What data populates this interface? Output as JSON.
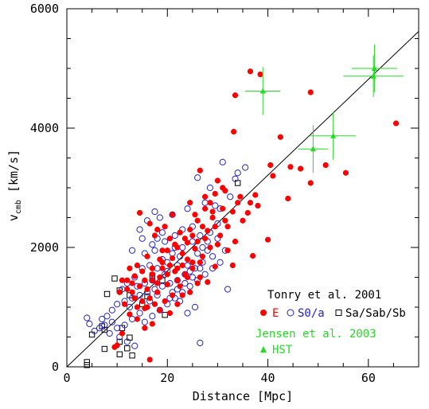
{
  "chart_data": {
    "type": "scatter",
    "xlabel": "Distance [Mpc]",
    "ylabel": "v",
    "ylabel_sub": "cmb",
    "ylabel_unit": "[km/s]",
    "xlim": [
      0,
      70
    ],
    "ylim": [
      0,
      6000
    ],
    "x_ticks": [
      0,
      20,
      40,
      60
    ],
    "y_ticks": [
      0,
      2000,
      4000,
      6000
    ],
    "x_minor_step": 5,
    "y_minor_step": 500,
    "grid": false,
    "reference_line": {
      "x": [
        0,
        71
      ],
      "y": [
        0,
        5700
      ]
    },
    "legend": {
      "placement": "bottom-right",
      "group1_title": "Tonry et al. 2001",
      "e_label": "E",
      "s0_label": "S0/a",
      "sa_label": "Sa/Sab/Sb",
      "group2_title": "Jensen et al. 2003",
      "hst_label": "HST"
    },
    "colors": {
      "E": "#ff0000",
      "S0": "#2222cc",
      "Sa": "#000000",
      "HST": "#22dd22",
      "axis": "#000000"
    },
    "series": [
      {
        "name": "E",
        "marker": "filled-circle",
        "color": "#ff0000",
        "points": [
          [
            36.5,
            4950
          ],
          [
            38.5,
            4900
          ],
          [
            33.5,
            4550
          ],
          [
            48.5,
            4600
          ],
          [
            65.5,
            4080
          ],
          [
            33.2,
            3940
          ],
          [
            42.5,
            3850
          ],
          [
            40.5,
            3380
          ],
          [
            44.5,
            3350
          ],
          [
            46.5,
            3320
          ],
          [
            51.5,
            3380
          ],
          [
            55.5,
            3250
          ],
          [
            41.0,
            3200
          ],
          [
            48.5,
            3080
          ],
          [
            44.0,
            2820
          ],
          [
            40.0,
            2130
          ],
          [
            37.0,
            1860
          ],
          [
            33.0,
            1700
          ],
          [
            26.5,
            3290
          ],
          [
            30.0,
            3120
          ],
          [
            29.5,
            2900
          ],
          [
            31.5,
            2950
          ],
          [
            34.5,
            2850
          ],
          [
            37.5,
            2880
          ],
          [
            31.0,
            2650
          ],
          [
            33.0,
            2600
          ],
          [
            36.0,
            2580
          ],
          [
            38.0,
            2700
          ],
          [
            35.0,
            2450
          ],
          [
            32.0,
            2350
          ],
          [
            30.5,
            2200
          ],
          [
            28.0,
            2280
          ],
          [
            26.0,
            2450
          ],
          [
            24.5,
            2750
          ],
          [
            27.5,
            2650
          ],
          [
            29.0,
            2500
          ],
          [
            14.5,
            2580
          ],
          [
            16.5,
            2400
          ],
          [
            18.0,
            2300
          ],
          [
            20.5,
            2150
          ],
          [
            22.0,
            2000
          ],
          [
            24.0,
            2080
          ],
          [
            25.5,
            1980
          ],
          [
            27.0,
            1850
          ],
          [
            23.0,
            1700
          ],
          [
            21.0,
            1820
          ],
          [
            19.0,
            1750
          ],
          [
            17.0,
            1650
          ],
          [
            15.0,
            1600
          ],
          [
            13.5,
            1520
          ],
          [
            12.0,
            1450
          ],
          [
            14.5,
            1350
          ],
          [
            16.0,
            1300
          ],
          [
            18.0,
            1250
          ],
          [
            20.0,
            1380
          ],
          [
            22.0,
            1450
          ],
          [
            23.5,
            1550
          ],
          [
            25.0,
            1650
          ],
          [
            26.5,
            1500
          ],
          [
            28.0,
            1420
          ],
          [
            29.5,
            1680
          ],
          [
            21.0,
            1200
          ],
          [
            19.5,
            1100
          ],
          [
            17.5,
            1050
          ],
          [
            15.5,
            980
          ],
          [
            13.5,
            1150
          ],
          [
            11.5,
            1050
          ],
          [
            10.5,
            1250
          ],
          [
            12.5,
            880
          ],
          [
            14.0,
            800
          ],
          [
            15.5,
            650
          ],
          [
            17.0,
            720
          ],
          [
            11.0,
            560
          ],
          [
            10.0,
            360
          ],
          [
            9.5,
            330
          ],
          [
            16.5,
            120
          ],
          [
            18.5,
            1800
          ],
          [
            20.0,
            1950
          ],
          [
            23.0,
            1900
          ],
          [
            26.0,
            2100
          ],
          [
            22.5,
            2250
          ],
          [
            24.5,
            2300
          ],
          [
            27.0,
            2350
          ],
          [
            30.0,
            2050
          ],
          [
            28.5,
            2000
          ],
          [
            25.0,
            1750
          ],
          [
            24.0,
            1500
          ],
          [
            22.5,
            1350
          ],
          [
            21.5,
            1600
          ],
          [
            20.0,
            1550
          ],
          [
            18.5,
            1500
          ],
          [
            17.0,
            1450
          ],
          [
            16.0,
            1850
          ],
          [
            19.0,
            1950
          ],
          [
            21.5,
            2050
          ],
          [
            23.5,
            2150
          ],
          [
            18.0,
            1400
          ],
          [
            16.5,
            1150
          ],
          [
            15.0,
            1100
          ],
          [
            13.0,
            1250
          ],
          [
            12.5,
            1650
          ],
          [
            14.0,
            1700
          ],
          [
            19.5,
            2350
          ],
          [
            17.5,
            2200
          ],
          [
            21.0,
            2550
          ],
          [
            25.5,
            2550
          ],
          [
            28.5,
            2750
          ],
          [
            27.5,
            2850
          ],
          [
            33.5,
            2100
          ],
          [
            32.0,
            1950
          ],
          [
            34.0,
            2750
          ],
          [
            36.5,
            2750
          ],
          [
            31.0,
            3000
          ],
          [
            29.0,
            2600
          ],
          [
            26.0,
            1400
          ],
          [
            24.5,
            1250
          ],
          [
            23.0,
            1200
          ],
          [
            22.0,
            1050
          ],
          [
            20.5,
            900
          ],
          [
            18.5,
            950
          ],
          [
            14.0,
            1000
          ],
          [
            12.0,
            1300
          ],
          [
            11.0,
            1450
          ],
          [
            13.0,
            1400
          ],
          [
            15.5,
            1450
          ],
          [
            17.0,
            1550
          ],
          [
            19.0,
            1650
          ],
          [
            20.5,
            1700
          ],
          [
            16.0,
            1000
          ],
          [
            22.0,
            1650
          ],
          [
            24.0,
            1800
          ],
          [
            26.5,
            1750
          ],
          [
            25.0,
            2200
          ],
          [
            27.5,
            2150
          ],
          [
            29.5,
            2350
          ],
          [
            31.5,
            2450
          ]
        ]
      },
      {
        "name": "S0/a",
        "marker": "open-circle",
        "color": "#2222cc",
        "points": [
          [
            31.0,
            3430
          ],
          [
            35.5,
            3340
          ],
          [
            34.0,
            3250
          ],
          [
            26.0,
            3170
          ],
          [
            33.5,
            3150
          ],
          [
            28.5,
            3000
          ],
          [
            32.5,
            2850
          ],
          [
            27.5,
            2750
          ],
          [
            29.5,
            2700
          ],
          [
            30.5,
            2650
          ],
          [
            24.0,
            2650
          ],
          [
            21.0,
            2550
          ],
          [
            18.5,
            2500
          ],
          [
            17.5,
            2600
          ],
          [
            16.0,
            2450
          ],
          [
            14.5,
            2300
          ],
          [
            13.0,
            1950
          ],
          [
            15.0,
            2150
          ],
          [
            17.0,
            2050
          ],
          [
            19.5,
            2100
          ],
          [
            21.5,
            2200
          ],
          [
            23.0,
            2300
          ],
          [
            25.0,
            2350
          ],
          [
            26.5,
            2200
          ],
          [
            28.0,
            2100
          ],
          [
            30.0,
            2150
          ],
          [
            31.5,
            1950
          ],
          [
            29.0,
            1850
          ],
          [
            27.0,
            1750
          ],
          [
            25.5,
            1650
          ],
          [
            23.5,
            1550
          ],
          [
            22.0,
            1450
          ],
          [
            20.5,
            1400
          ],
          [
            19.0,
            1350
          ],
          [
            17.5,
            1300
          ],
          [
            16.0,
            1250
          ],
          [
            14.5,
            1200
          ],
          [
            13.0,
            1150
          ],
          [
            11.5,
            1100
          ],
          [
            10.0,
            1050
          ],
          [
            9.0,
            950
          ],
          [
            8.0,
            850
          ],
          [
            7.0,
            800
          ],
          [
            7.5,
            700
          ],
          [
            6.5,
            650
          ],
          [
            8.5,
            560
          ],
          [
            4.0,
            820
          ],
          [
            4.5,
            720
          ],
          [
            5.5,
            600
          ],
          [
            10.5,
            500
          ],
          [
            12.0,
            420
          ],
          [
            13.5,
            350
          ],
          [
            15.5,
            750
          ],
          [
            17.0,
            850
          ],
          [
            18.5,
            950
          ],
          [
            20.0,
            1050
          ],
          [
            21.5,
            1150
          ],
          [
            23.0,
            1250
          ],
          [
            24.5,
            1350
          ],
          [
            26.0,
            1450
          ],
          [
            27.5,
            1550
          ],
          [
            29.0,
            1650
          ],
          [
            30.5,
            1750
          ],
          [
            32.0,
            1300
          ],
          [
            26.5,
            400
          ],
          [
            25.5,
            1000
          ],
          [
            24.0,
            900
          ],
          [
            22.5,
            1100
          ],
          [
            21.0,
            1250
          ],
          [
            19.5,
            1550
          ],
          [
            18.0,
            1650
          ],
          [
            16.5,
            1700
          ],
          [
            15.0,
            1650
          ],
          [
            13.5,
            1500
          ],
          [
            12.0,
            1400
          ],
          [
            11.0,
            1300
          ],
          [
            15.5,
            1900
          ],
          [
            17.5,
            1950
          ],
          [
            19.0,
            1800
          ],
          [
            21.0,
            1900
          ],
          [
            23.0,
            2000
          ],
          [
            25.0,
            2100
          ],
          [
            27.0,
            2000
          ],
          [
            28.5,
            2250
          ],
          [
            30.0,
            2400
          ],
          [
            20.0,
            1600
          ],
          [
            22.0,
            1700
          ],
          [
            24.0,
            1700
          ],
          [
            26.0,
            1900
          ],
          [
            18.0,
            1200
          ],
          [
            16.5,
            1100
          ],
          [
            14.5,
            900
          ],
          [
            13.0,
            800
          ],
          [
            11.5,
            700
          ],
          [
            10.0,
            650
          ],
          [
            9.0,
            750
          ],
          [
            12.5,
            1000
          ],
          [
            14.0,
            1350
          ],
          [
            15.5,
            1400
          ],
          [
            17.0,
            1450
          ],
          [
            20.5,
            1150
          ],
          [
            22.0,
            1300
          ],
          [
            23.5,
            1400
          ],
          [
            25.0,
            1500
          ],
          [
            24.5,
            1600
          ],
          [
            26.5,
            1650
          ],
          [
            28.0,
            1950
          ],
          [
            22.5,
            1850
          ],
          [
            20.0,
            1750
          ],
          [
            21.5,
            2000
          ],
          [
            19.0,
            2250
          ],
          [
            18.0,
            2150
          ]
        ]
      },
      {
        "name": "Sa/Sab/Sb",
        "marker": "open-square",
        "color": "#000000",
        "points": [
          [
            34.0,
            3080
          ],
          [
            17.0,
            1530
          ],
          [
            19.0,
            1450
          ],
          [
            9.5,
            1480
          ],
          [
            10.5,
            1280
          ],
          [
            12.5,
            1200
          ],
          [
            16.0,
            1180
          ],
          [
            15.0,
            1050
          ],
          [
            19.5,
            870
          ],
          [
            7.0,
            680
          ],
          [
            7.5,
            620
          ],
          [
            11.0,
            650
          ],
          [
            12.5,
            490
          ],
          [
            5.0,
            540
          ],
          [
            10.5,
            420
          ],
          [
            7.5,
            300
          ],
          [
            12.0,
            310
          ],
          [
            13.0,
            190
          ],
          [
            10.5,
            210
          ],
          [
            4.0,
            80
          ],
          [
            4.0,
            30
          ],
          [
            8.0,
            1220
          ]
        ]
      },
      {
        "name": "HST",
        "marker": "filled-triangle",
        "color": "#22dd22",
        "points": [
          {
            "x": 61.2,
            "y": 5000,
            "xerr": 4.5,
            "yerr": 400
          },
          {
            "x": 61.0,
            "y": 4870,
            "xerr": 6.0,
            "yerr": 350
          },
          {
            "x": 39.0,
            "y": 4620,
            "xerr": 3.5,
            "yerr": 400
          },
          {
            "x": 53.0,
            "y": 3870,
            "xerr": 4.5,
            "yerr": 400
          },
          {
            "x": 49.0,
            "y": 3650,
            "xerr": 3.0,
            "yerr": 400
          }
        ]
      }
    ]
  }
}
